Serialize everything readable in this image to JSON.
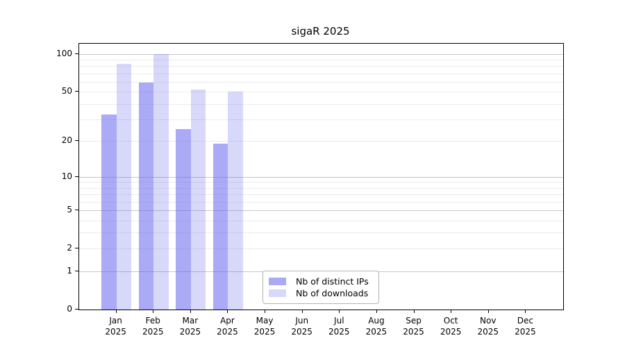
{
  "title": "sigaR 2025",
  "chart_data": {
    "type": "bar",
    "title": "sigaR 2025",
    "y_scale": "log1p",
    "grid": "on",
    "legend_position": "bottom-center",
    "categories": [
      "Jan",
      "Feb",
      "Mar",
      "Apr",
      "May",
      "Jun",
      "Jul",
      "Aug",
      "Sep",
      "Oct",
      "Nov",
      "Dec"
    ],
    "x_year_label": "2025",
    "series": [
      {
        "name": "Nb of distinct IPs",
        "color": "rgba(100,100,240,0.55)",
        "values": [
          33,
          59,
          25,
          19,
          0,
          0,
          0,
          0,
          0,
          0,
          0,
          0
        ]
      },
      {
        "name": "Nb of downloads",
        "color": "rgba(100,100,240,0.25)",
        "values": [
          83,
          100,
          52,
          50,
          0,
          0,
          0,
          0,
          0,
          0,
          0,
          0
        ]
      }
    ],
    "y_ticks": [
      0,
      1,
      2,
      5,
      10,
      20,
      50,
      100
    ],
    "minor_gridlines": [
      2,
      3,
      4,
      6,
      7,
      8,
      9,
      20,
      30,
      40,
      50,
      60,
      70,
      80,
      90
    ],
    "major_gridlines": [
      1,
      5,
      10,
      100
    ],
    "ylim": [
      0,
      100
    ],
    "xlabel": "",
    "ylabel": ""
  },
  "colors": {
    "bar_ips": "rgba(100,100,240,0.55)",
    "bar_downloads": "rgba(100,100,240,0.25)",
    "grid_minor": "#ebebeb",
    "grid_major": "#c6c6c6",
    "axis": "#000000",
    "legend_border": "#b3b3b3",
    "background": "#ffffff"
  }
}
